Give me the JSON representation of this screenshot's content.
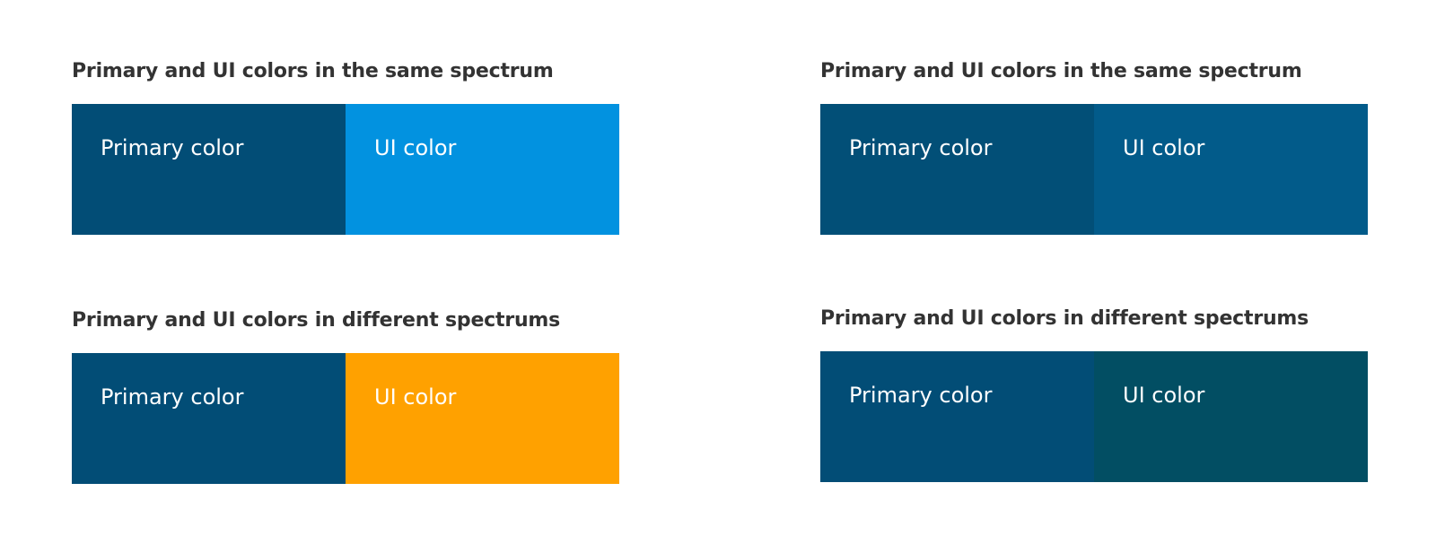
{
  "panels": [
    {
      "title": "Primary and UI colors  in the same spectrum",
      "primary": {
        "label": "Primary color",
        "color": "#024D76"
      },
      "ui": {
        "label": "UI color",
        "color": "#0292E0"
      }
    },
    {
      "title": "Primary and UI colors in the same spectrum",
      "primary": {
        "label": "Primary color",
        "color": "#024F77"
      },
      "ui": {
        "label": "UI color",
        "color": "#025B8A"
      }
    },
    {
      "title": "Primary and UI colors in different spectrums",
      "primary": {
        "label": "Primary color",
        "color": "#024D76"
      },
      "ui": {
        "label": "UI color",
        "color": "#FFA100"
      }
    },
    {
      "title": "Primary and UI colors in different spectrums",
      "primary": {
        "label": "Primary color",
        "color": "#024D76"
      },
      "ui": {
        "label": "UI color",
        "color": "#024E63"
      }
    }
  ]
}
